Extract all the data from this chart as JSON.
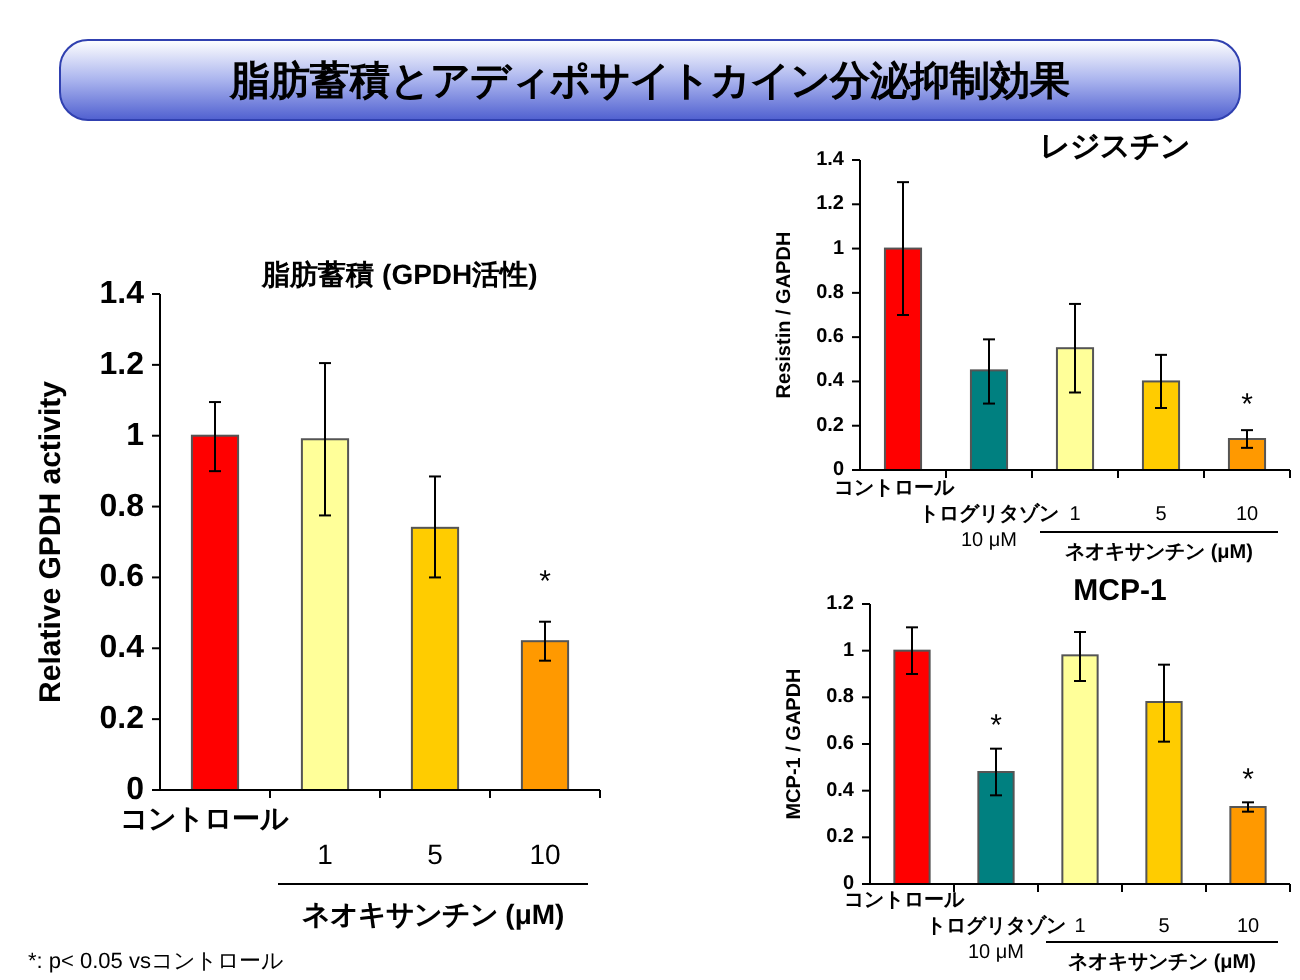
{
  "chart_data": [
    {
      "type": "bar",
      "title": "脂肪蓄積とアディポサイトカイン分泌抑制効果",
      "subtitle": "脂肪蓄積 (GPDH活性)",
      "ylabel": "Relative GPDH activity",
      "categories": [
        "コントロール",
        "1",
        "5",
        "10"
      ],
      "values": [
        1.0,
        0.99,
        0.74,
        0.42
      ],
      "errors": [
        [
          0.9,
          1.095
        ],
        [
          0.775,
          1.205
        ],
        [
          0.6,
          0.885
        ],
        [
          0.365,
          0.475
        ]
      ],
      "colors": [
        "#ff0000",
        "#ffff99",
        "#ffcc00",
        "#ff9900"
      ],
      "ylim": [
        0,
        1.4
      ],
      "yticks": [
        0,
        0.2,
        0.4,
        0.6,
        0.8,
        1,
        1.2,
        1.4
      ],
      "annotations": [
        {
          "text": "*",
          "x": "10",
          "y": 0.42
        },
        "ネオキサンチン (μM)",
        "*: p< 0.05 vsコントロール"
      ]
    },
    {
      "type": "bar",
      "title": "レジスチン",
      "ylabel": "Resistin / GAPDH",
      "categories": [
        "コントロール",
        "トログリタゾン\n10 μM",
        "1",
        "5",
        "10"
      ],
      "values": [
        1.0,
        0.45,
        0.55,
        0.4,
        0.14
      ],
      "errors": [
        [
          0.7,
          1.3
        ],
        [
          0.3,
          0.59
        ],
        [
          0.35,
          0.75
        ],
        [
          0.28,
          0.52
        ],
        [
          0.1,
          0.18
        ]
      ],
      "colors": [
        "#ff0000",
        "#008080",
        "#ffff99",
        "#ffcc00",
        "#ff9900"
      ],
      "ylim": [
        0,
        1.4
      ],
      "yticks": [
        0,
        0.2,
        0.4,
        0.6,
        0.8,
        1,
        1.2,
        1.4
      ],
      "annotations": [
        {
          "text": "*",
          "x": "10",
          "y": 0.14
        },
        "ネオキサンチン (μM)"
      ]
    },
    {
      "type": "bar",
      "title": "MCP-1",
      "ylabel": "MCP-1 / GAPDH",
      "categories": [
        "コントロール",
        "トログリタゾン\n10 μM",
        "1",
        "5",
        "10"
      ],
      "values": [
        1.0,
        0.48,
        0.98,
        0.78,
        0.33
      ],
      "errors": [
        [
          0.9,
          1.1
        ],
        [
          0.38,
          0.58
        ],
        [
          0.87,
          1.08
        ],
        [
          0.61,
          0.94
        ],
        [
          0.31,
          0.35
        ]
      ],
      "colors": [
        "#ff0000",
        "#008080",
        "#ffff99",
        "#ffcc00",
        "#ff9900"
      ],
      "ylim": [
        0,
        1.2
      ],
      "yticks": [
        0,
        0.2,
        0.4,
        0.6,
        0.8,
        1,
        1.2
      ],
      "annotations": [
        {
          "text": "*",
          "x": "トログリタゾン\n10 μM",
          "y": 0.48
        },
        {
          "text": "*",
          "x": "10",
          "y": 0.33
        },
        "ネオキサンチン (μM)"
      ]
    }
  ]
}
